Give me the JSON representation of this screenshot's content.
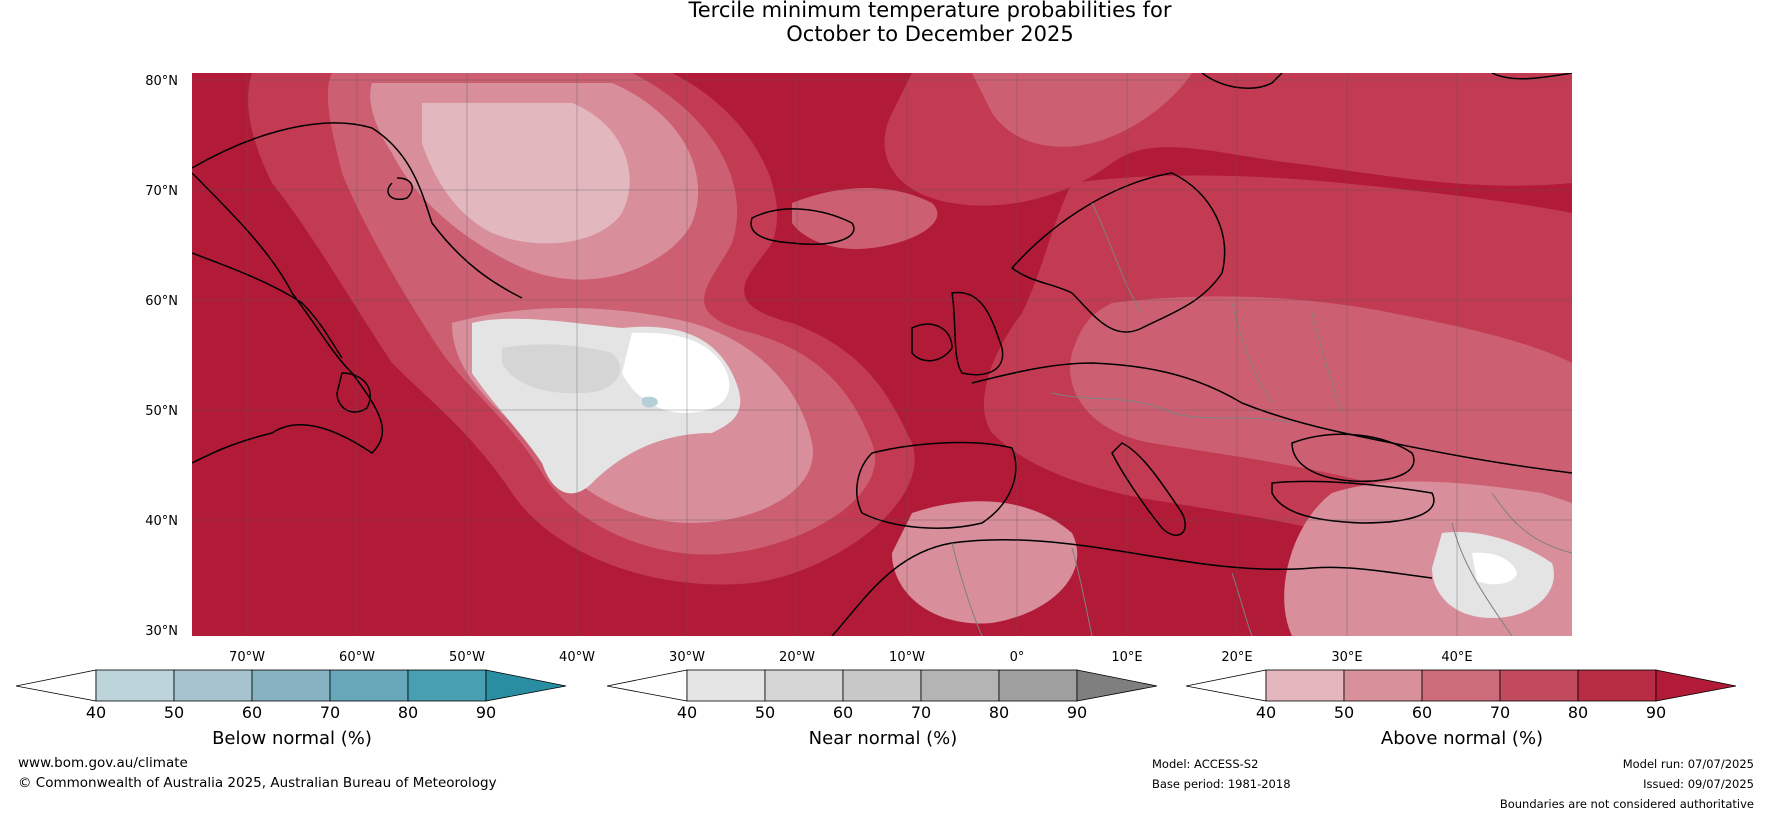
{
  "title": {
    "line1": "Tercile minimum temperature probabilities for",
    "line2": "October to December 2025"
  },
  "map": {
    "latitude_labels": [
      "80°N",
      "70°N",
      "60°N",
      "50°N",
      "40°N",
      "30°N"
    ],
    "longitude_labels": [
      "70°W",
      "60°W",
      "50°W",
      "40°W",
      "30°W",
      "20°W",
      "10°W",
      "0°",
      "10°E",
      "20°E",
      "30°E",
      "40°E"
    ],
    "colors": {
      "above_90": "#b21b38",
      "above_80": "#c23b53",
      "above_70": "#cc6072",
      "above_60": "#d88e9b",
      "above_50": "#e2b7be",
      "near_40": "#e4e4e4",
      "near_50": "#d5d5d5",
      "below_40": "#b7cfd8",
      "land_outline": "#000000",
      "borders": "#7f7f7f"
    }
  },
  "colorbars": [
    {
      "title": "Below normal (%)",
      "ticks": [
        "40",
        "50",
        "60",
        "70",
        "80",
        "90"
      ],
      "colors": [
        "#ffffff",
        "#bed4db",
        "#a7c4ce",
        "#87b2c2",
        "#67a7b9",
        "#479fb1",
        "#2a8ea3"
      ]
    },
    {
      "title": "Near normal (%)",
      "ticks": [
        "40",
        "50",
        "60",
        "70",
        "80",
        "90"
      ],
      "colors": [
        "#ffffff",
        "#e5e5e5",
        "#d6d6d6",
        "#c8c8c8",
        "#b4b4b4",
        "#9f9f9f",
        "#7f7f7f"
      ]
    },
    {
      "title": "Above normal (%)",
      "ticks": [
        "40",
        "50",
        "60",
        "70",
        "80",
        "90"
      ],
      "colors": [
        "#ffffff",
        "#e4b7bf",
        "#d8909b",
        "#cc6b79",
        "#c24a5d",
        "#b82c44",
        "#b21b38"
      ]
    }
  ],
  "footer": {
    "website": "www.bom.gov.au/climate",
    "copyright": "© Commonwealth of Australia 2025, Australian Bureau of Meteorology",
    "model": "Model: ACCESS-S2",
    "base_period": "Base period: 1981-2018",
    "model_run": "Model run: 07/07/2025",
    "issued": "Issued: 09/07/2025",
    "disclaimer": "Boundaries are not considered authoritative"
  }
}
